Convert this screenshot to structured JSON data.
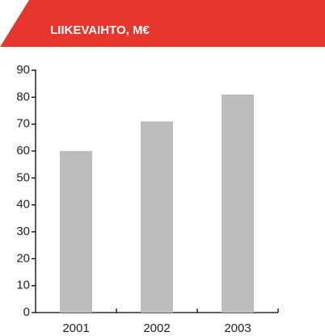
{
  "chart_data": {
    "type": "bar",
    "title": "LIIKEVAIHTO, M€",
    "categories": [
      "2001",
      "2002",
      "2003"
    ],
    "values": [
      60,
      71,
      81
    ],
    "color": "#bcbdbf",
    "ylim": [
      0,
      90
    ],
    "yticks": [
      0,
      10,
      20,
      30,
      40,
      50,
      60,
      70,
      80,
      90
    ],
    "grid": false
  }
}
